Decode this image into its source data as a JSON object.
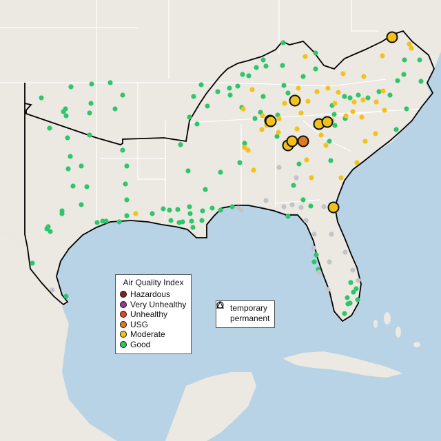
{
  "legend": {
    "title": "Air Quality Index",
    "items": [
      {
        "label": "Hazardous",
        "color": "#7e2121"
      },
      {
        "label": "Very Unhealthy",
        "color": "#8f3f97"
      },
      {
        "label": "Unhealthy",
        "color": "#e8412b"
      },
      {
        "label": "USG",
        "color": "#e07a22"
      },
      {
        "label": "Moderate",
        "color": "#f3c21a"
      },
      {
        "label": "Good",
        "color": "#2ec66a"
      }
    ]
  },
  "type_legend": {
    "items": [
      {
        "label": "temporary",
        "shape": "circle"
      },
      {
        "label": "permanent",
        "shape": "triangle"
      }
    ]
  },
  "colors": {
    "water": "#b9d3e6",
    "land": "#ece8e2",
    "state_border": "#ffffff",
    "region_outline": "#000000",
    "no_data": "#c2c4c6"
  }
}
